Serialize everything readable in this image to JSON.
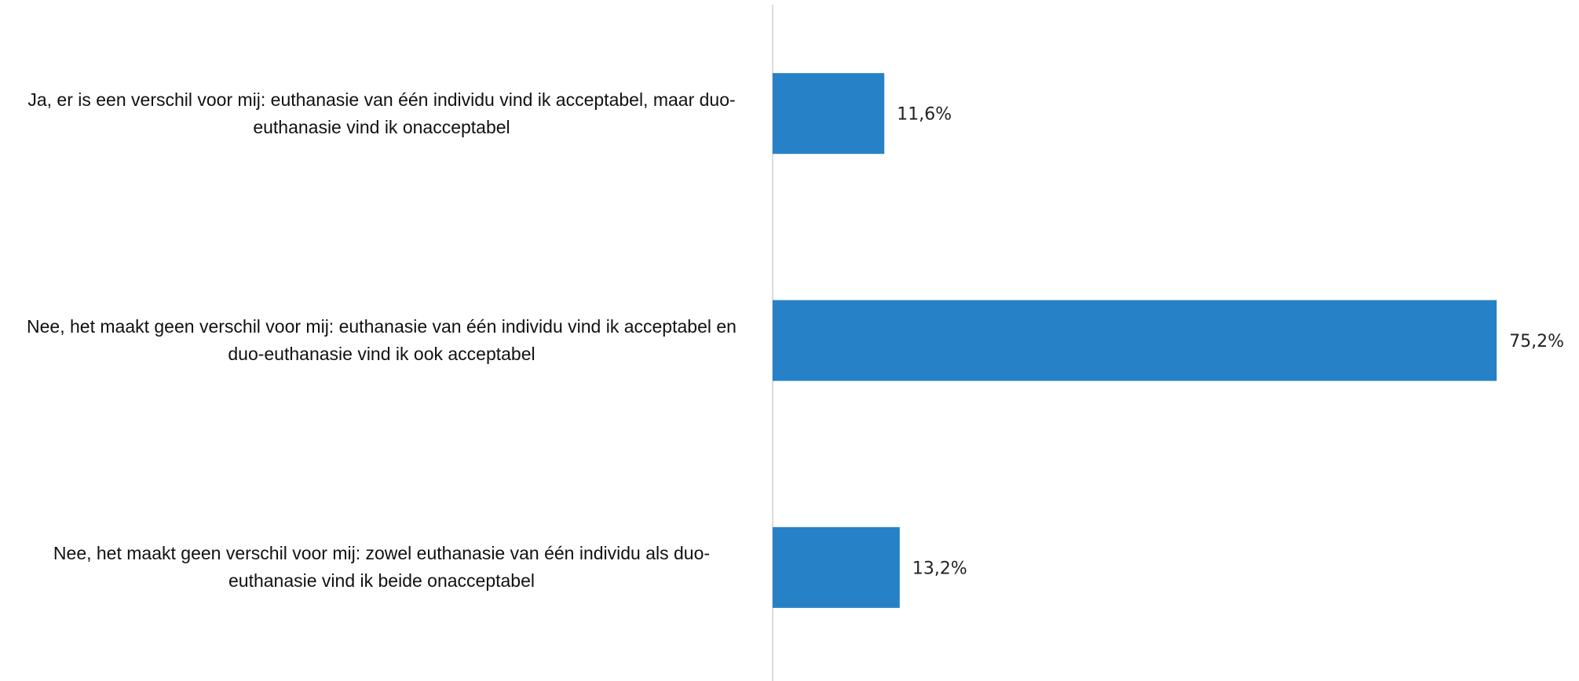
{
  "chart_data": {
    "type": "barh",
    "categories": [
      "Ja, er is een verschil voor mij: euthanasie van één individu vind ik acceptabel, maar duo-euthanasie vind ik onacceptabel",
      "Nee, het maakt geen verschil voor mij: euthanasie van één individu vind ik acceptabel en duo-euthanasie vind ik ook acceptabel",
      "Nee, het maakt geen verschil voor mij: zowel euthanasie van één individu als duo-euthanasie vind ik beide onacceptabel"
    ],
    "values": [
      11.6,
      75.2,
      13.2
    ],
    "value_labels": [
      "11,6%",
      "75,2%",
      "13,2%"
    ],
    "color": "#2781c6",
    "xlim": [
      0,
      80
    ]
  }
}
